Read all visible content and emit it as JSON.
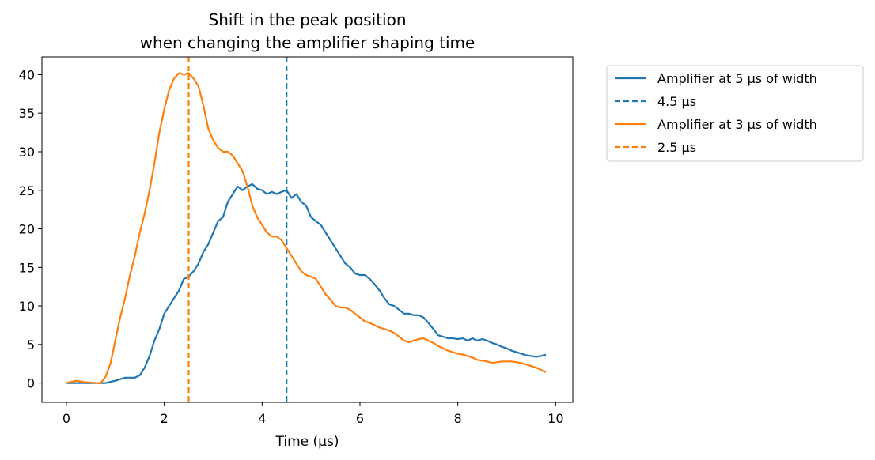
{
  "chart_data": {
    "type": "line",
    "title": [
      "Shift in the peak position",
      "when changing the amplifier shaping time"
    ],
    "xlabel": "Time (µs)",
    "ylabel": "",
    "xlim": [
      -0.5,
      10.35
    ],
    "ylim": [
      -2.5,
      42.3
    ],
    "xticks": [
      0,
      2,
      4,
      6,
      8,
      10
    ],
    "yticks": [
      0,
      5,
      10,
      15,
      20,
      25,
      30,
      35,
      40
    ],
    "grid": false,
    "legend_position": "outside upper right",
    "series": [
      {
        "name": "Amplifier at 5 µs of width",
        "color": "#1f77b4",
        "style": "solid",
        "x": [
          0,
          0.2,
          0.4,
          0.6,
          0.8,
          1.0,
          1.2,
          1.4,
          1.5,
          1.6,
          1.7,
          1.8,
          1.9,
          2.0,
          2.1,
          2.2,
          2.3,
          2.4,
          2.5,
          2.6,
          2.7,
          2.8,
          2.9,
          3.0,
          3.1,
          3.2,
          3.3,
          3.4,
          3.5,
          3.6,
          3.7,
          3.8,
          3.9,
          4.0,
          4.1,
          4.2,
          4.3,
          4.4,
          4.5,
          4.6,
          4.7,
          4.8,
          4.9,
          5.0,
          5.1,
          5.2,
          5.3,
          5.4,
          5.5,
          5.6,
          5.7,
          5.8,
          5.9,
          6.0,
          6.1,
          6.2,
          6.3,
          6.4,
          6.5,
          6.6,
          6.7,
          6.8,
          6.9,
          7.0,
          7.1,
          7.2,
          7.3,
          7.4,
          7.5,
          7.6,
          7.7,
          7.8,
          7.9,
          8.0,
          8.1,
          8.2,
          8.3,
          8.4,
          8.5,
          8.6,
          8.7,
          8.8,
          8.9,
          9.0,
          9.1,
          9.2,
          9.3,
          9.4,
          9.5,
          9.6,
          9.7,
          9.8
        ],
        "y": [
          0,
          0,
          0,
          0,
          0,
          0.3,
          0.7,
          0.7,
          1.0,
          2.0,
          3.5,
          5.5,
          7.0,
          9.0,
          10.0,
          11.0,
          12.0,
          13.5,
          13.8,
          14.5,
          15.5,
          17.0,
          18.0,
          19.5,
          21.0,
          21.5,
          23.5,
          24.5,
          25.5,
          25.0,
          25.5,
          25.8,
          25.2,
          25.0,
          24.5,
          24.8,
          24.5,
          24.8,
          25.0,
          24.0,
          24.5,
          23.5,
          23.0,
          21.5,
          21.0,
          20.5,
          19.5,
          18.5,
          17.5,
          16.5,
          15.5,
          15.0,
          14.2,
          14.0,
          14.0,
          13.5,
          12.8,
          12.0,
          11.0,
          10.2,
          10.0,
          9.5,
          9.0,
          9.0,
          8.8,
          8.8,
          8.5,
          7.8,
          7.0,
          6.2,
          6.0,
          5.8,
          5.8,
          5.7,
          5.8,
          5.5,
          5.8,
          5.5,
          5.7,
          5.5,
          5.2,
          5.0,
          4.7,
          4.5,
          4.2,
          4.0,
          3.8,
          3.6,
          3.5,
          3.4,
          3.5,
          3.7
        ]
      },
      {
        "name": "4.5 µs",
        "color": "#1f77b4",
        "style": "dashed",
        "vline": 4.5
      },
      {
        "name": "Amplifier at 3 µs of width",
        "color": "#ff7f0e",
        "style": "solid",
        "x": [
          0,
          0.2,
          0.4,
          0.6,
          0.7,
          0.8,
          0.9,
          1.0,
          1.1,
          1.2,
          1.3,
          1.4,
          1.5,
          1.6,
          1.7,
          1.8,
          1.9,
          2.0,
          2.1,
          2.2,
          2.3,
          2.4,
          2.5,
          2.6,
          2.7,
          2.8,
          2.9,
          3.0,
          3.1,
          3.2,
          3.3,
          3.4,
          3.5,
          3.6,
          3.7,
          3.8,
          3.9,
          4.0,
          4.1,
          4.2,
          4.3,
          4.4,
          4.5,
          4.6,
          4.7,
          4.8,
          4.9,
          5.0,
          5.1,
          5.2,
          5.3,
          5.4,
          5.5,
          5.6,
          5.7,
          5.8,
          5.9,
          6.0,
          6.1,
          6.2,
          6.3,
          6.4,
          6.5,
          6.6,
          6.7,
          6.8,
          6.9,
          7.0,
          7.1,
          7.2,
          7.3,
          7.4,
          7.5,
          7.6,
          7.7,
          7.8,
          7.9,
          8.0,
          8.1,
          8.2,
          8.3,
          8.4,
          8.5,
          8.6,
          8.7,
          8.8,
          8.9,
          9.0,
          9.1,
          9.2,
          9.3,
          9.4,
          9.5,
          9.6,
          9.7,
          9.8
        ],
        "y": [
          0,
          0.3,
          0.1,
          0,
          0,
          0.8,
          2.5,
          5.5,
          8.5,
          11.0,
          14.0,
          16.5,
          19.5,
          22.0,
          25.0,
          28.5,
          32.5,
          35.5,
          38.0,
          39.5,
          40.2,
          40.0,
          40.2,
          39.5,
          38.5,
          36.0,
          33.0,
          31.5,
          30.5,
          30.0,
          30.0,
          29.5,
          28.5,
          27.5,
          25.5,
          23.0,
          21.5,
          20.5,
          19.5,
          19.0,
          19.0,
          18.5,
          17.5,
          16.5,
          15.5,
          14.5,
          14.0,
          13.8,
          13.5,
          12.5,
          11.5,
          10.8,
          10.0,
          9.8,
          9.8,
          9.5,
          9.0,
          8.5,
          8.0,
          7.8,
          7.5,
          7.2,
          7.0,
          6.8,
          6.5,
          6.0,
          5.5,
          5.3,
          5.5,
          5.7,
          5.8,
          5.5,
          5.2,
          4.8,
          4.5,
          4.2,
          4.0,
          3.8,
          3.7,
          3.5,
          3.3,
          3.0,
          2.9,
          2.8,
          2.6,
          2.7,
          2.8,
          2.8,
          2.8,
          2.7,
          2.6,
          2.4,
          2.2,
          2.0,
          1.7,
          1.4
        ]
      },
      {
        "name": "2.5 µs",
        "color": "#ff7f0e",
        "style": "dashed",
        "vline": 2.5
      }
    ]
  }
}
